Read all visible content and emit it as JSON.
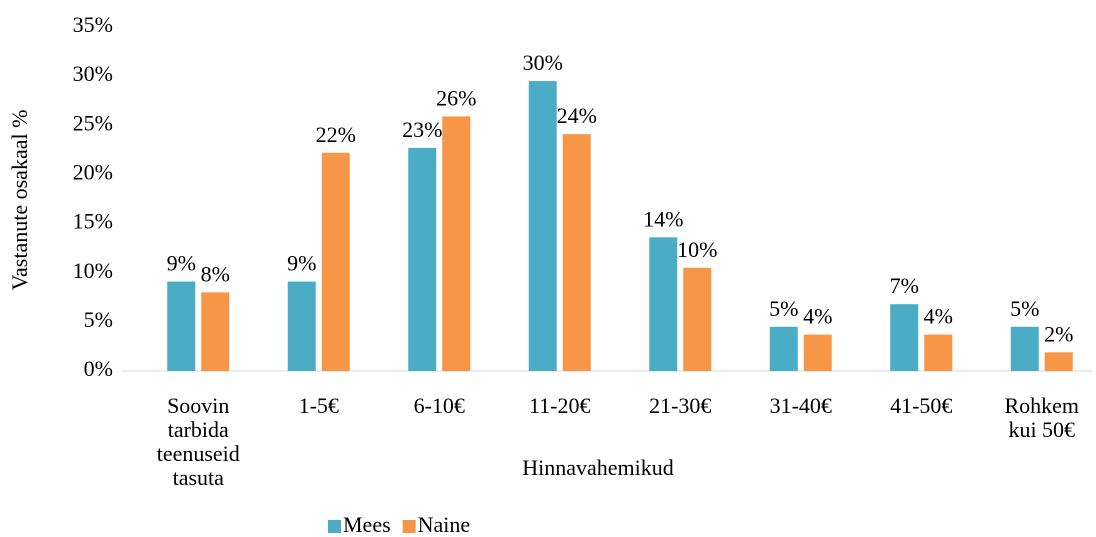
{
  "chart_data": {
    "type": "bar",
    "x_label": "Hinnavahemikud",
    "y_label": "Vastanute osakaal %",
    "categories": [
      "Soovin tarbida teenuseid tasuta",
      "1-5€",
      "6-10€",
      "11-20€",
      "21-30€",
      "31-40€",
      "41-50€",
      "Rohkem kui 50€"
    ],
    "series": [
      {
        "name": "Mees",
        "color": "#4bacc6",
        "values": [
          9.1,
          9.1,
          22.7,
          29.5,
          13.6,
          4.5,
          6.8,
          4.5
        ],
        "value_labels": [
          "9%",
          "9%",
          "23%",
          "30%",
          "14%",
          "5%",
          "7%",
          "5%"
        ]
      },
      {
        "name": "Naine",
        "color": "#f79646",
        "values": [
          8.0,
          22.2,
          25.9,
          24.1,
          10.5,
          3.7,
          3.7,
          1.9
        ],
        "value_labels": [
          "8%",
          "22%",
          "26%",
          "24%",
          "10%",
          "4%",
          "4%",
          "2%"
        ]
      }
    ],
    "ylim": [
      0,
      35
    ],
    "yticks": [
      {
        "value": 0,
        "label": "0%"
      },
      {
        "value": 5,
        "label": "5%"
      },
      {
        "value": 10,
        "label": "10%"
      },
      {
        "value": 15,
        "label": "15%"
      },
      {
        "value": 20,
        "label": "20%"
      },
      {
        "value": 25,
        "label": "25%"
      },
      {
        "value": 30,
        "label": "30%"
      },
      {
        "value": 35,
        "label": "35%"
      }
    ],
    "grid": false,
    "legend": "bottom"
  }
}
